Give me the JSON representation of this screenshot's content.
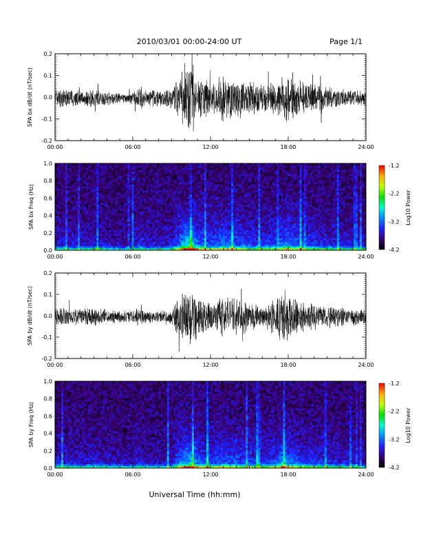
{
  "header": {
    "title": "2010/03/01   00:00-24:00 UT",
    "page": "Page 1/1"
  },
  "xlabel": "Universal Time (hh:mm)",
  "chart_data": [
    {
      "type": "line",
      "ylabel": "SPA bx dB/dt (nT/sec)",
      "xlim": [
        "00:00",
        "24:00"
      ],
      "xticks": [
        "00:00",
        "06:00",
        "12:00",
        "18:00",
        "24:00"
      ],
      "ylim": [
        -0.2,
        0.2
      ],
      "yticks": [
        "0.2",
        "0.1",
        "0.0",
        "-0.1",
        "-0.2"
      ],
      "envelope": {
        "hours": [
          0,
          1,
          2,
          3,
          4,
          5,
          6,
          6.5,
          7,
          8,
          9,
          9.5,
          10,
          10.5,
          11,
          12,
          13,
          14,
          15,
          16,
          17,
          17.5,
          18,
          19,
          20,
          21,
          22,
          23,
          24
        ],
        "amplitude": [
          0.05,
          0.045,
          0.04,
          0.045,
          0.035,
          0.025,
          0.025,
          0.06,
          0.04,
          0.04,
          0.05,
          0.1,
          0.16,
          0.2,
          0.12,
          0.08,
          0.12,
          0.1,
          0.08,
          0.07,
          0.08,
          0.1,
          0.12,
          0.08,
          0.07,
          0.06,
          0.05,
          0.04,
          0.04
        ]
      }
    },
    {
      "type": "heatmap",
      "ylabel": "SPA bx Freq (Hz)",
      "xlim": [
        "00:00",
        "24:00"
      ],
      "xticks": [
        "00:00",
        "06:00",
        "12:00",
        "18:00",
        "24:00"
      ],
      "ylim": [
        0.0,
        1.0
      ],
      "yticks": [
        "1.0",
        "0.8",
        "0.6",
        "0.4",
        "0.2",
        "0.0"
      ],
      "colorbar": {
        "label": "Log10 Power",
        "range": [
          -4.2,
          -1.2
        ],
        "ticks": [
          "-1.2",
          "-2.2",
          "-3.2",
          "-4.2"
        ]
      }
    },
    {
      "type": "line",
      "ylabel": "SPA by dB/dt (nT/sec)",
      "xlim": [
        "00:00",
        "24:00"
      ],
      "xticks": [
        "00:00",
        "06:00",
        "12:00",
        "18:00",
        "24:00"
      ],
      "ylim": [
        -0.2,
        0.2
      ],
      "yticks": [
        "0.2",
        "0.1",
        "0.0",
        "-0.1",
        "-0.2"
      ],
      "envelope": {
        "hours": [
          0,
          1,
          2,
          3,
          4,
          5,
          6,
          6.5,
          7,
          8,
          9,
          9.5,
          10,
          10.5,
          11,
          12,
          13,
          14,
          15,
          16,
          17,
          17.5,
          18,
          19,
          20,
          21,
          22,
          23,
          24
        ],
        "amplitude": [
          0.05,
          0.045,
          0.04,
          0.05,
          0.04,
          0.03,
          0.03,
          0.05,
          0.03,
          0.03,
          0.04,
          0.1,
          0.14,
          0.16,
          0.1,
          0.08,
          0.1,
          0.09,
          0.08,
          0.07,
          0.08,
          0.14,
          0.12,
          0.08,
          0.07,
          0.06,
          0.05,
          0.04,
          0.04
        ]
      }
    },
    {
      "type": "heatmap",
      "ylabel": "SPA by Freq (Hz)",
      "xlim": [
        "00:00",
        "24:00"
      ],
      "xticks": [
        "00:00",
        "06:00",
        "12:00",
        "18:00",
        "24:00"
      ],
      "ylim": [
        0.0,
        1.0
      ],
      "yticks": [
        "1.0",
        "0.8",
        "0.6",
        "0.4",
        "0.2",
        "0.0"
      ],
      "colorbar": {
        "label": "Log10 Power",
        "range": [
          -4.2,
          -1.2
        ],
        "ticks": [
          "-1.2",
          "-2.2",
          "-3.2",
          "-4.2"
        ]
      }
    }
  ]
}
